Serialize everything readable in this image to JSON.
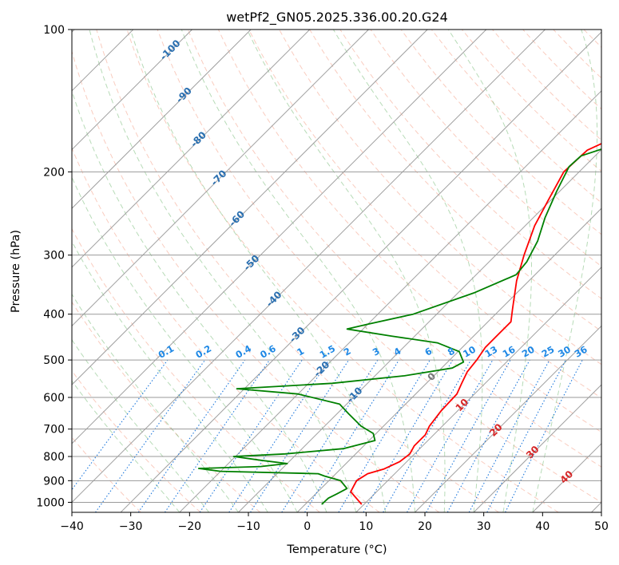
{
  "chart_data": {
    "type": "line",
    "title": "wetPf2_GN05.2025.336.00.20.G24",
    "xlabel": "Temperature (°C)",
    "ylabel": "Pressure (hPa)",
    "xlim": [
      -40,
      50
    ],
    "ylim_pressure_hpa": [
      1050,
      100
    ],
    "x_ticks": [
      -40,
      -30,
      -20,
      -10,
      0,
      10,
      20,
      30,
      40,
      50
    ],
    "y_ticks": [
      1000,
      900,
      800,
      700,
      600,
      500,
      400,
      300,
      200,
      100
    ],
    "series": [
      {
        "name": "Temperature",
        "color": "#ff0000",
        "points": [
          [
            1010,
            9.6
          ],
          [
            950,
            5.6
          ],
          [
            900,
            4.7
          ],
          [
            870,
            5.4
          ],
          [
            850,
            7.4
          ],
          [
            820,
            8.8
          ],
          [
            790,
            9.2
          ],
          [
            760,
            8.6
          ],
          [
            720,
            8.6
          ],
          [
            690,
            7.8
          ],
          [
            640,
            7.2
          ],
          [
            590,
            7.0
          ],
          [
            560,
            6.0
          ],
          [
            530,
            5.0
          ],
          [
            500,
            4.6
          ],
          [
            470,
            3.9
          ],
          [
            440,
            3.9
          ],
          [
            415,
            3.9
          ],
          [
            390,
            2.0
          ],
          [
            340,
            -2.1
          ],
          [
            300,
            -5.2
          ],
          [
            260,
            -8.4
          ],
          [
            230,
            -10.4
          ],
          [
            200,
            -12.6
          ],
          [
            180,
            -12.3
          ],
          [
            170,
            -10.0
          ],
          [
            160,
            -6.0
          ],
          [
            150,
            -2.6
          ],
          [
            140,
            1.6
          ],
          [
            125,
            4.6
          ],
          [
            110,
            10.0
          ],
          [
            100,
            12.0
          ]
        ]
      },
      {
        "name": "Dewpoint",
        "color": "#008000",
        "points": [
          [
            1010,
            2.8
          ],
          [
            980,
            2.9
          ],
          [
            960,
            3.6
          ],
          [
            935,
            4.4
          ],
          [
            900,
            2.0
          ],
          [
            880,
            -1.5
          ],
          [
            870,
            -3.0
          ],
          [
            860,
            -20.0
          ],
          [
            848,
            -24.2
          ],
          [
            840,
            -14.0
          ],
          [
            828,
            -10.0
          ],
          [
            815,
            -15.0
          ],
          [
            800,
            -20.3
          ],
          [
            790,
            -12.0
          ],
          [
            770,
            -3.0
          ],
          [
            740,
            1.0
          ],
          [
            715,
            -0.5
          ],
          [
            690,
            -3.8
          ],
          [
            650,
            -8.0
          ],
          [
            620,
            -11.2
          ],
          [
            590,
            -20.0
          ],
          [
            575,
            -31.3
          ],
          [
            560,
            -16.0
          ],
          [
            540,
            -5.0
          ],
          [
            520,
            1.8
          ],
          [
            505,
            2.7
          ],
          [
            480,
            0.2
          ],
          [
            460,
            -5.0
          ],
          [
            445,
            -14.0
          ],
          [
            430,
            -22.7
          ],
          [
            420,
            -20.0
          ],
          [
            400,
            -14.0
          ],
          [
            360,
            -7.2
          ],
          [
            330,
            -3.2
          ],
          [
            310,
            -3.6
          ],
          [
            280,
            -5.3
          ],
          [
            250,
            -8.0
          ],
          [
            220,
            -10.5
          ],
          [
            195,
            -12.6
          ],
          [
            185,
            -12.4
          ],
          [
            175,
            -8.4
          ],
          [
            168,
            -7.3
          ],
          [
            160,
            -8.4
          ],
          [
            150,
            -9.0
          ],
          [
            140,
            -7.3
          ],
          [
            130,
            -5.1
          ],
          [
            120,
            -3.7
          ],
          [
            110,
            -3.2
          ],
          [
            100,
            -1.3
          ]
        ]
      }
    ],
    "background_lines": {
      "isotherms_c": [
        -100,
        -90,
        -80,
        -70,
        -60,
        -50,
        -40,
        -30,
        -20,
        -10,
        0,
        10,
        20,
        30,
        40,
        50
      ],
      "dry_adiabats": "dashed, light red",
      "moist_adiabats": "dashed, light green",
      "mixing_ratio_lines": "dotted, blue",
      "isotherm_labels": [
        "-100",
        "-90",
        "-80",
        "-70",
        "-60",
        "-50",
        "-40",
        "-30",
        "-20",
        "-10"
      ],
      "mixing_ratio_labels": [
        "0.1",
        "0.2",
        "0.4",
        "0.6",
        "1",
        "1.5",
        "2",
        "3",
        "4",
        "6",
        "8",
        "10",
        "13",
        "16",
        "20",
        "25",
        "30",
        "36"
      ],
      "right_isotherm_labels": [
        "0",
        "10",
        "20",
        "30",
        "40"
      ]
    }
  }
}
